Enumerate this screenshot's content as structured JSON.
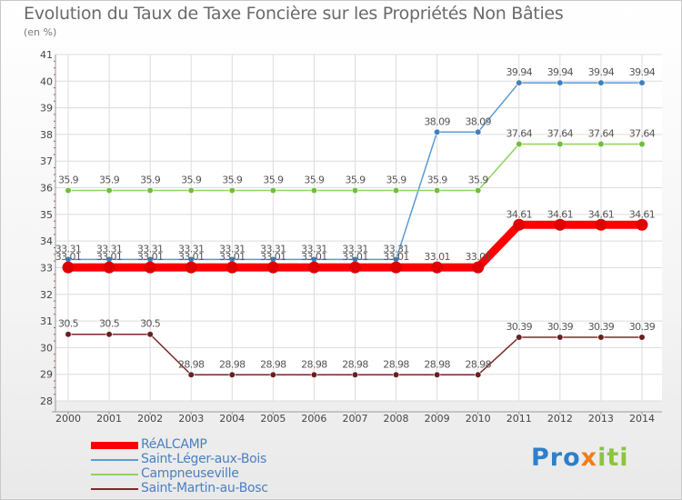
{
  "title": "Evolution du Taux de Taxe Foncière sur les Propriétés Non Bâties",
  "unit_label": "(en %)",
  "logo": {
    "part1": "Pro",
    "part2": "x",
    "part3": "iti"
  },
  "chart_data": {
    "type": "line",
    "x": [
      2000,
      2001,
      2002,
      2003,
      2004,
      2005,
      2006,
      2007,
      2008,
      2009,
      2010,
      2011,
      2012,
      2013,
      2014
    ],
    "ylim": [
      28,
      41
    ],
    "yticks": [
      28,
      29,
      30,
      31,
      32,
      33,
      34,
      35,
      36,
      37,
      38,
      39,
      40,
      41
    ],
    "grid": true,
    "legend_position": "bottom-left",
    "series": [
      {
        "name": "RéALCAMP",
        "color": "#ff0000",
        "point_color": "#e00000",
        "emphasis": true,
        "label_color": "#555555",
        "values": [
          33.01,
          33.01,
          33.01,
          33.01,
          33.01,
          33.01,
          33.01,
          33.01,
          33.01,
          33.01,
          33.01,
          34.61,
          34.61,
          34.61,
          34.61
        ],
        "labels": [
          "33.01",
          "33.01",
          "33.01",
          "33.01",
          "33.01",
          "33.01",
          "33.01",
          "33.01",
          "33.01",
          "33.01",
          "33.01",
          "34.61",
          "34.61",
          "34.61",
          "34.61"
        ]
      },
      {
        "name": "Saint-Léger-aux-Bois",
        "color": "#5b9bd5",
        "point_color": "#3f7fbf",
        "emphasis": false,
        "label_color": "#555555",
        "values": [
          33.31,
          33.31,
          33.31,
          33.31,
          33.31,
          33.31,
          33.31,
          33.31,
          33.31,
          38.09,
          38.09,
          39.94,
          39.94,
          39.94,
          39.94
        ],
        "labels": [
          "33.31",
          "33.31",
          "33.31",
          "33.31",
          "33.31",
          "33.31",
          "33.31",
          "33.31",
          "33.31",
          "38.09",
          "38.09",
          "39.94",
          "39.94",
          "39.94",
          "39.94"
        ]
      },
      {
        "name": "Campneuseville",
        "color": "#8ed45a",
        "point_color": "#6fbf3a",
        "emphasis": false,
        "label_color": "#555555",
        "values": [
          35.9,
          35.9,
          35.9,
          35.9,
          35.9,
          35.9,
          35.9,
          35.9,
          35.9,
          35.9,
          35.9,
          37.64,
          37.64,
          37.64,
          37.64
        ],
        "labels": [
          "35.9",
          "35.9",
          "35.9",
          "35.9",
          "35.9",
          "35.9",
          "35.9",
          "35.9",
          "35.9",
          "35.9",
          "35.9",
          "37.64",
          "37.64",
          "37.64",
          "37.64"
        ]
      },
      {
        "name": "Saint-Martin-au-Bosc",
        "color": "#7a2a2a",
        "point_color": "#6a1f1f",
        "emphasis": false,
        "label_color": "#555555",
        "values": [
          30.5,
          30.5,
          30.5,
          28.98,
          28.98,
          28.98,
          28.98,
          28.98,
          28.98,
          28.98,
          28.98,
          30.39,
          30.39,
          30.39,
          30.39
        ],
        "labels": [
          "30.5",
          "30.5",
          "30.5",
          "28.98",
          "28.98",
          "28.98",
          "28.98",
          "28.98",
          "28.98",
          "28.98",
          "28.98",
          "30.39",
          "30.39",
          "30.39",
          "30.39"
        ]
      }
    ]
  }
}
